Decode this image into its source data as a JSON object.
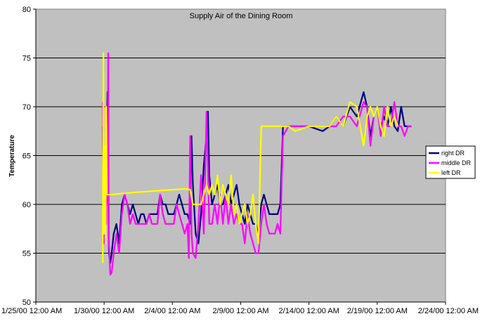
{
  "chart_data": {
    "type": "line",
    "title": "Supply Air of the Dining Room",
    "xlabel": "",
    "ylabel": "Temperature",
    "ylim": [
      50,
      80
    ],
    "yticks": [
      50,
      55,
      60,
      65,
      70,
      75,
      80
    ],
    "ytick_labels": [
      "50",
      "55",
      "60",
      "65",
      "70",
      "75",
      "80"
    ],
    "xlim": [
      "1/25/00 12:00 AM",
      "2/24/00 12:00 AM"
    ],
    "xticks": [
      "1/25/00 12:00 AM",
      "1/30/00 12:00 AM",
      "2/4/00 12:00 AM",
      "2/9/00 12:00 AM",
      "2/14/00 12:00 AM",
      "2/19/00 12:00 AM",
      "2/24/00 12:00 AM"
    ],
    "xtick_labels": [
      "1/25/00 12:00 AM",
      "1/30/00 12:00 AM",
      "2/4/00 12:00 AM",
      "2/9/00 12:00 AM",
      "2/14/00 12:00 AM",
      "2/19/00 12:00 AM",
      "2/24/00 12:00 AM"
    ],
    "grid": "horizontal",
    "legend_position": "right",
    "series": [
      {
        "name": "right DR",
        "color": "#000080",
        "points": [
          [
            "1/29/00 9:36 PM",
            68
          ],
          [
            "1/29/00 10:48 PM",
            58
          ],
          [
            "1/30/00 12:00 AM",
            62
          ],
          [
            "1/30/00 1:12 AM",
            59
          ],
          [
            "1/30/00 2:24 AM",
            66
          ],
          [
            "1/30/00 3:36 AM",
            60
          ],
          [
            "1/30/00 4:48 AM",
            68
          ],
          [
            "1/30/00 6:00 AM",
            71.5
          ],
          [
            "1/30/00 8:24 AM",
            55
          ],
          [
            "1/30/00 10:48 AM",
            54
          ],
          [
            "1/30/00 1:12 PM",
            55
          ],
          [
            "1/30/00 4:48 PM",
            57
          ],
          [
            "1/30/00 9:36 PM",
            58
          ],
          [
            "1/31/00 2:24 AM",
            56
          ],
          [
            "1/31/00 7:12 AM",
            60
          ],
          [
            "1/31/00 12:00 PM",
            61
          ],
          [
            "1/31/00 4:48 PM",
            60
          ],
          [
            "1/31/00 9:36 PM",
            59
          ],
          [
            "2/1/00 2:24 AM",
            60
          ],
          [
            "2/1/00 7:12 AM",
            59
          ],
          [
            "2/1/00 12:00 PM",
            58
          ],
          [
            "2/1/00 4:48 PM",
            59
          ],
          [
            "2/1/00 9:36 PM",
            59
          ],
          [
            "2/2/00 2:24 AM",
            58
          ],
          [
            "2/2/00 7:12 AM",
            59
          ],
          [
            "2/2/00 12:00 PM",
            59
          ],
          [
            "2/2/00 4:48 PM",
            59
          ],
          [
            "2/2/00 9:36 PM",
            59
          ],
          [
            "2/3/00 2:24 AM",
            61
          ],
          [
            "2/3/00 7:12 AM",
            60
          ],
          [
            "2/3/00 12:00 PM",
            60
          ],
          [
            "2/3/00 4:48 PM",
            59
          ],
          [
            "2/3/00 9:36 PM",
            59
          ],
          [
            "2/4/00 2:24 AM",
            59
          ],
          [
            "2/4/00 7:12 AM",
            60
          ],
          [
            "2/4/00 12:00 PM",
            61
          ],
          [
            "2/4/00 4:48 PM",
            60
          ],
          [
            "2/4/00 9:36 PM",
            59
          ],
          [
            "2/5/00 2:24 AM",
            59
          ],
          [
            "2/5/00 7:12 AM",
            58
          ],
          [
            "2/5/00 9:36 AM",
            67
          ],
          [
            "2/5/00 12:00 PM",
            62
          ],
          [
            "2/5/00 4:48 PM",
            57
          ],
          [
            "2/5/00 9:36 PM",
            56
          ],
          [
            "2/6/00 2:24 AM",
            59
          ],
          [
            "2/6/00 7:12 AM",
            64
          ],
          [
            "2/6/00 12:00 PM",
            67
          ],
          [
            "2/6/00 2:24 PM",
            69.5
          ],
          [
            "2/6/00 4:48 PM",
            63
          ],
          [
            "2/6/00 9:36 PM",
            60
          ],
          [
            "2/7/00 2:24 AM",
            61
          ],
          [
            "2/7/00 7:12 AM",
            62
          ],
          [
            "2/7/00 12:00 PM",
            60
          ],
          [
            "2/7/00 4:48 PM",
            60
          ],
          [
            "2/7/00 9:36 PM",
            61
          ],
          [
            "2/8/00 2:24 AM",
            62
          ],
          [
            "2/8/00 7:12 AM",
            60
          ],
          [
            "2/8/00 12:00 PM",
            61
          ],
          [
            "2/8/00 4:48 PM",
            62
          ],
          [
            "2/8/00 9:36 PM",
            60
          ],
          [
            "2/9/00 2:24 AM",
            59
          ],
          [
            "2/9/00 7:12 AM",
            58
          ],
          [
            "2/9/00 12:00 PM",
            60
          ],
          [
            "2/9/00 4:48 PM",
            59
          ],
          [
            "2/9/00 9:36 PM",
            58
          ],
          [
            "2/10/00 2:24 AM",
            58
          ],
          [
            "2/10/00 7:12 AM",
            57
          ],
          [
            "2/10/00 12:00 PM",
            60
          ],
          [
            "2/10/00 4:48 PM",
            61
          ],
          [
            "2/10/00 9:36 PM",
            60
          ],
          [
            "2/11/00 2:24 AM",
            59
          ],
          [
            "2/11/00 7:12 AM",
            59
          ],
          [
            "2/11/00 12:00 PM",
            59
          ],
          [
            "2/11/00 4:48 PM",
            59
          ],
          [
            "2/11/00 9:36 PM",
            60
          ],
          [
            "2/12/00 2:24 AM",
            68
          ],
          [
            "2/13/00 12:00 AM",
            68
          ],
          [
            "2/14/00 12:00 AM",
            68
          ],
          [
            "2/15/00 12:00 AM",
            67.5
          ],
          [
            "2/15/00 12:00 PM",
            68
          ],
          [
            "2/16/00 12:00 AM",
            69
          ],
          [
            "2/16/00 12:00 PM",
            68
          ],
          [
            "2/17/00 12:00 AM",
            70
          ],
          [
            "2/17/00 12:00 PM",
            69
          ],
          [
            "2/18/00 12:00 AM",
            71.5
          ],
          [
            "2/18/00 6:00 AM",
            70
          ],
          [
            "2/18/00 12:00 PM",
            67
          ],
          [
            "2/18/00 6:00 PM",
            69
          ],
          [
            "2/19/00 12:00 AM",
            70
          ],
          [
            "2/19/00 6:00 AM",
            68
          ],
          [
            "2/19/00 12:00 PM",
            69
          ],
          [
            "2/19/00 6:00 PM",
            68
          ],
          [
            "2/20/00 12:00 AM",
            70
          ],
          [
            "2/20/00 6:00 AM",
            68
          ],
          [
            "2/20/00 12:00 PM",
            67.5
          ],
          [
            "2/20/00 6:00 PM",
            70
          ],
          [
            "2/21/00 12:00 AM",
            68
          ],
          [
            "2/21/00 6:00 AM",
            68
          ],
          [
            "2/21/00 12:00 PM",
            68
          ]
        ]
      },
      {
        "name": "middle DR",
        "color": "#ff00ff",
        "points": [
          [
            "1/29/00 9:36 PM",
            70.5
          ],
          [
            "1/29/00 10:48 PM",
            56
          ],
          [
            "1/30/00 12:00 AM",
            62
          ],
          [
            "1/30/00 1:12 AM",
            56
          ],
          [
            "1/30/00 2:24 AM",
            64
          ],
          [
            "1/30/00 3:36 AM",
            58
          ],
          [
            "1/30/00 4:48 AM",
            68
          ],
          [
            "1/30/00 6:00 AM",
            60
          ],
          [
            "1/30/00 7:12 AM",
            75.5
          ],
          [
            "1/30/00 8:24 AM",
            56
          ],
          [
            "1/30/00 10:48 AM",
            52.8
          ],
          [
            "1/30/00 1:12 PM",
            53
          ],
          [
            "1/30/00 4:48 PM",
            55
          ],
          [
            "1/30/00 9:36 PM",
            57
          ],
          [
            "1/31/00 2:24 AM",
            55
          ],
          [
            "1/31/00 7:12 AM",
            59
          ],
          [
            "1/31/00 12:00 PM",
            61
          ],
          [
            "1/31/00 4:48 PM",
            60
          ],
          [
            "1/31/00 9:36 PM",
            58
          ],
          [
            "2/1/00 2:24 AM",
            59
          ],
          [
            "2/1/00 7:12 AM",
            58
          ],
          [
            "2/1/00 12:00 PM",
            58
          ],
          [
            "2/1/00 4:48 PM",
            58
          ],
          [
            "2/1/00 9:36 PM",
            58
          ],
          [
            "2/2/00 2:24 AM",
            58
          ],
          [
            "2/2/00 7:12 AM",
            59
          ],
          [
            "2/2/00 12:00 PM",
            58
          ],
          [
            "2/2/00 4:48 PM",
            58
          ],
          [
            "2/2/00 9:36 PM",
            58
          ],
          [
            "2/3/00 2:24 AM",
            61
          ],
          [
            "2/3/00 7:12 AM",
            59
          ],
          [
            "2/3/00 12:00 PM",
            58
          ],
          [
            "2/3/00 4:48 PM",
            58
          ],
          [
            "2/3/00 9:36 PM",
            58
          ],
          [
            "2/4/00 2:24 AM",
            58
          ],
          [
            "2/4/00 7:12 AM",
            60
          ],
          [
            "2/4/00 12:00 PM",
            59
          ],
          [
            "2/4/00 4:48 PM",
            58
          ],
          [
            "2/4/00 9:36 PM",
            57
          ],
          [
            "2/5/00 2:24 AM",
            58
          ],
          [
            "2/5/00 4:48 AM",
            54.5
          ],
          [
            "2/5/00 7:12 AM",
            67
          ],
          [
            "2/5/00 9:36 AM",
            57
          ],
          [
            "2/5/00 12:00 PM",
            55
          ],
          [
            "2/5/00 4:48 PM",
            54.5
          ],
          [
            "2/5/00 9:36 PM",
            58
          ],
          [
            "2/6/00 2:24 AM",
            63
          ],
          [
            "2/6/00 7:12 AM",
            57
          ],
          [
            "2/6/00 12:00 PM",
            69.5
          ],
          [
            "2/6/00 4:48 PM",
            58
          ],
          [
            "2/6/00 9:36 PM",
            58
          ],
          [
            "2/7/00 2:24 AM",
            60
          ],
          [
            "2/7/00 7:12 AM",
            58
          ],
          [
            "2/7/00 12:00 PM",
            61
          ],
          [
            "2/7/00 4:48 PM",
            58
          ],
          [
            "2/7/00 9:36 PM",
            61
          ],
          [
            "2/8/00 2:24 AM",
            58
          ],
          [
            "2/8/00 7:12 AM",
            60
          ],
          [
            "2/8/00 12:00 PM",
            58
          ],
          [
            "2/8/00 4:48 PM",
            59
          ],
          [
            "2/8/00 9:36 PM",
            58
          ],
          [
            "2/9/00 2:24 AM",
            58
          ],
          [
            "2/9/00 7:12 AM",
            56
          ],
          [
            "2/9/00 12:00 PM",
            59
          ],
          [
            "2/9/00 4:48 PM",
            57
          ],
          [
            "2/9/00 9:36 PM",
            56
          ],
          [
            "2/10/00 2:24 AM",
            55
          ],
          [
            "2/10/00 7:12 AM",
            55
          ],
          [
            "2/10/00 12:00 PM",
            58
          ],
          [
            "2/10/00 4:48 PM",
            60
          ],
          [
            "2/10/00 9:36 PM",
            58
          ],
          [
            "2/11/00 2:24 AM",
            57
          ],
          [
            "2/11/00 7:12 AM",
            57
          ],
          [
            "2/11/00 12:00 PM",
            57
          ],
          [
            "2/11/00 4:48 PM",
            58
          ],
          [
            "2/11/00 9:36 PM",
            57
          ],
          [
            "2/12/00 2:24 AM",
            67
          ],
          [
            "2/12/00 12:00 PM",
            68
          ],
          [
            "2/13/00 12:00 AM",
            68
          ],
          [
            "2/14/00 12:00 AM",
            68
          ],
          [
            "2/15/00 12:00 AM",
            68
          ],
          [
            "2/15/00 12:00 PM",
            68
          ],
          [
            "2/16/00 12:00 AM",
            68
          ],
          [
            "2/16/00 12:00 PM",
            69
          ],
          [
            "2/17/00 12:00 AM",
            69
          ],
          [
            "2/17/00 12:00 PM",
            68
          ],
          [
            "2/18/00 12:00 AM",
            70.5
          ],
          [
            "2/18/00 6:00 AM",
            70
          ],
          [
            "2/18/00 12:00 PM",
            66
          ],
          [
            "2/18/00 6:00 PM",
            69
          ],
          [
            "2/19/00 12:00 AM",
            70
          ],
          [
            "2/19/00 6:00 AM",
            67
          ],
          [
            "2/19/00 12:00 PM",
            70
          ],
          [
            "2/19/00 6:00 PM",
            68
          ],
          [
            "2/20/00 12:00 AM",
            68
          ],
          [
            "2/20/00 6:00 AM",
            70.5
          ],
          [
            "2/20/00 12:00 PM",
            68
          ],
          [
            "2/20/00 6:00 PM",
            68
          ],
          [
            "2/21/00 12:00 AM",
            67
          ],
          [
            "2/21/00 6:00 AM",
            68
          ],
          [
            "2/21/00 12:00 PM",
            68
          ]
        ]
      },
      {
        "name": "left DR",
        "color": "#ffff00",
        "points": [
          [
            "1/29/00 9:36 PM",
            54
          ],
          [
            "1/29/00 10:48 PM",
            75.5
          ],
          [
            "1/30/00 12:00 AM",
            57
          ],
          [
            "1/30/00 1:12 AM",
            66
          ],
          [
            "1/30/00 2:24 AM",
            56
          ],
          [
            "1/30/00 3:36 AM",
            70
          ],
          [
            "1/30/00 4:48 AM",
            61
          ],
          [
            "1/30/00 6:00 AM",
            61
          ],
          [
            "1/30/00 12:00 PM",
            61
          ],
          [
            "2/1/00 12:00 AM",
            61.2
          ],
          [
            "2/3/00 12:00 AM",
            61.4
          ],
          [
            "2/5/00 12:00 AM",
            61.6
          ],
          [
            "2/5/00 7:12 AM",
            61.5
          ],
          [
            "2/5/00 12:00 PM",
            60
          ],
          [
            "2/5/00 9:36 PM",
            60
          ],
          [
            "2/6/00 2:24 AM",
            60
          ],
          [
            "2/6/00 7:12 AM",
            61
          ],
          [
            "2/6/00 12:00 PM",
            62
          ],
          [
            "2/6/00 4:48 PM",
            61
          ],
          [
            "2/6/00 9:36 PM",
            62
          ],
          [
            "2/7/00 2:24 AM",
            61
          ],
          [
            "2/7/00 7:12 AM",
            63
          ],
          [
            "2/7/00 12:00 PM",
            60
          ],
          [
            "2/7/00 4:48 PM",
            62
          ],
          [
            "2/7/00 9:36 PM",
            61
          ],
          [
            "2/8/00 2:24 AM",
            60
          ],
          [
            "2/8/00 7:12 AM",
            63
          ],
          [
            "2/8/00 12:00 PM",
            59
          ],
          [
            "2/8/00 4:48 PM",
            60
          ],
          [
            "2/8/00 9:36 PM",
            58
          ],
          [
            "2/9/00 2:24 AM",
            59
          ],
          [
            "2/9/00 7:12 AM",
            60
          ],
          [
            "2/9/00 12:00 PM",
            58
          ],
          [
            "2/9/00 4:48 PM",
            59
          ],
          [
            "2/9/00 9:36 PM",
            61
          ],
          [
            "2/10/00 2:24 AM",
            58
          ],
          [
            "2/10/00 7:12 AM",
            56
          ],
          [
            "2/10/00 12:00 PM",
            68
          ],
          [
            "2/10/00 4:48 PM",
            68
          ],
          [
            "2/11/00 2:24 AM",
            68
          ],
          [
            "2/11/00 12:00 PM",
            68
          ],
          [
            "2/12/00 12:00 AM",
            68
          ],
          [
            "2/12/00 12:00 PM",
            68
          ],
          [
            "2/13/00 12:00 AM",
            67.5
          ],
          [
            "2/14/00 12:00 AM",
            68
          ],
          [
            "2/15/00 12:00 AM",
            68
          ],
          [
            "2/15/00 12:00 PM",
            68
          ],
          [
            "2/16/00 12:00 AM",
            69
          ],
          [
            "2/16/00 12:00 PM",
            68
          ],
          [
            "2/17/00 12:00 AM",
            70.5
          ],
          [
            "2/17/00 12:00 PM",
            70
          ],
          [
            "2/18/00 12:00 AM",
            66
          ],
          [
            "2/18/00 6:00 AM",
            69
          ],
          [
            "2/18/00 12:00 PM",
            70
          ],
          [
            "2/18/00 6:00 PM",
            69
          ],
          [
            "2/19/00 12:00 AM",
            70
          ],
          [
            "2/19/00 6:00 AM",
            68
          ],
          [
            "2/19/00 12:00 PM",
            67
          ],
          [
            "2/19/00 6:00 PM",
            70
          ],
          [
            "2/20/00 12:00 AM",
            68
          ],
          [
            "2/20/00 6:00 AM",
            69
          ],
          [
            "2/20/00 12:00 PM",
            68
          ]
        ]
      }
    ]
  }
}
